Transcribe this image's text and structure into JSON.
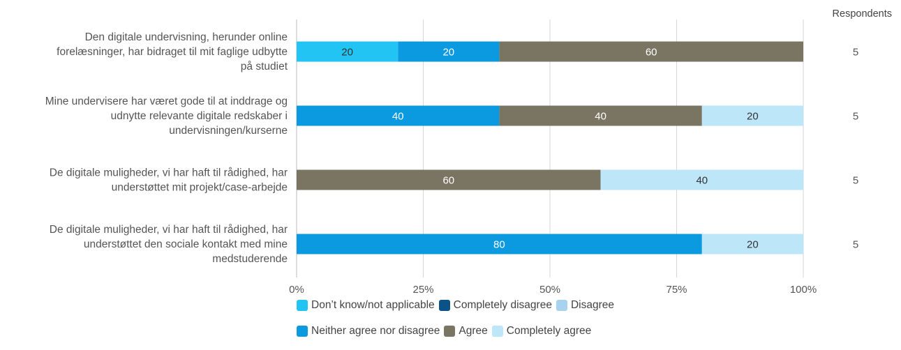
{
  "chart_data": {
    "type": "bar",
    "orientation": "horizontal",
    "stacked": true,
    "xlim": [
      0,
      100
    ],
    "x_ticks": [
      "0%",
      "25%",
      "50%",
      "75%",
      "100%"
    ],
    "respondents_header": "Respondents",
    "legend_position": "bottom",
    "categories": [
      [
        "Den digitale undervisning, herunder online",
        "forelæsninger, har bidraget til mit faglige udbytte",
        "på studiet"
      ],
      [
        "Mine undervisere har været gode til at inddrage og",
        "udnytte relevante digitale redskaber i",
        "undervisningen/kurserne"
      ],
      [
        "De digitale muligheder, vi har haft til rådighed, har",
        "understøttet mit projekt/case-arbejde"
      ],
      [
        "De digitale muligheder, vi har haft til rådighed, har",
        "understøttet den sociale kontakt med mine",
        "medstuderende"
      ]
    ],
    "respondents": [
      "5",
      "5",
      "5",
      "5"
    ],
    "series": [
      {
        "name": "Don’t know/not applicable",
        "color": "#21c4f2",
        "label_color": "#333333",
        "values": [
          20,
          0,
          0,
          0
        ]
      },
      {
        "name": "Completely disagree",
        "color": "#0b5286",
        "label_color": "#ffffff",
        "values": [
          0,
          0,
          0,
          0
        ]
      },
      {
        "name": "Disagree",
        "color": "#a8d3f0",
        "label_color": "#333333",
        "values": [
          0,
          0,
          0,
          0
        ]
      },
      {
        "name": "Neither agree nor disagree",
        "color": "#0b9ae0",
        "label_color": "#ffffff",
        "values": [
          20,
          40,
          0,
          80
        ]
      },
      {
        "name": "Agree",
        "color": "#7a7562",
        "label_color": "#ffffff",
        "values": [
          60,
          40,
          60,
          0
        ]
      },
      {
        "name": "Completely agree",
        "color": "#bde6f9",
        "label_color": "#333333",
        "values": [
          0,
          20,
          40,
          20
        ]
      }
    ],
    "legend_rows": [
      [
        0,
        1,
        2
      ],
      [
        3,
        4,
        5
      ]
    ]
  }
}
